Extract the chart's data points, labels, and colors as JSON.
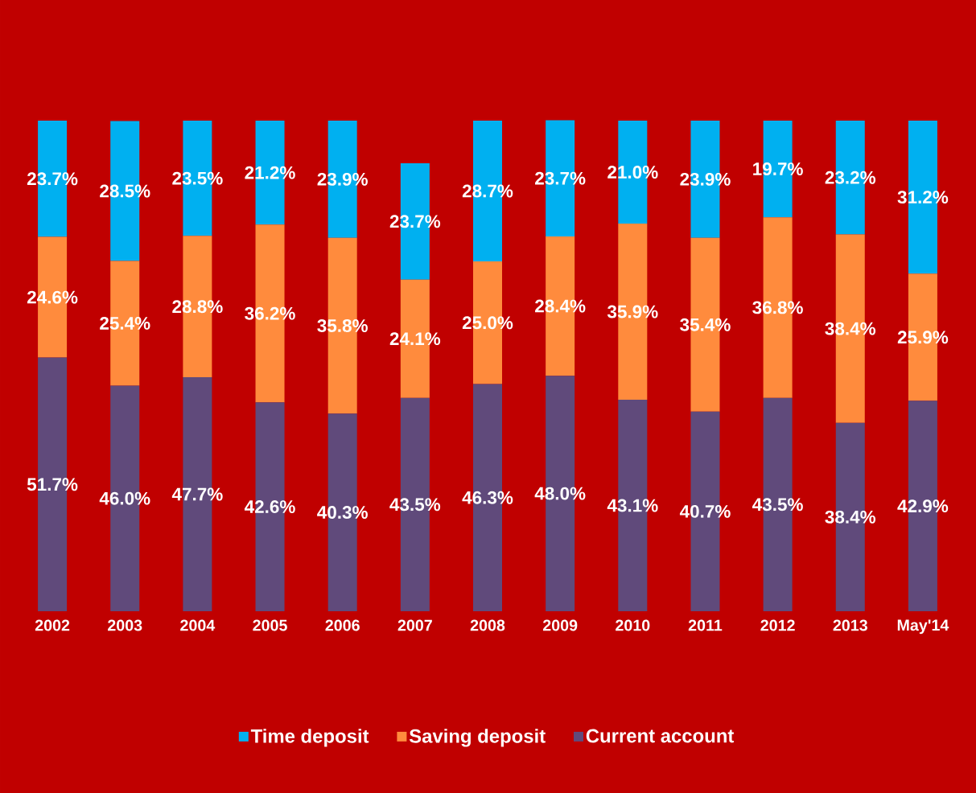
{
  "chart_data": {
    "type": "bar",
    "stacked": true,
    "categories": [
      "2002",
      "2003",
      "2004",
      "2005",
      "2006",
      "2007",
      "2008",
      "2009",
      "2010",
      "2011",
      "2012",
      "2013",
      "May'14"
    ],
    "series": [
      {
        "name": "Current account",
        "color": "#604a7b",
        "values": [
          51.7,
          46.0,
          47.7,
          42.6,
          40.3,
          43.5,
          46.3,
          48.0,
          43.1,
          40.7,
          43.5,
          38.4,
          42.9
        ],
        "value_labels": [
          "51.7%",
          "46.0%",
          "47.7%",
          "42.6%",
          "40.3%",
          "43.5%",
          "46.3%",
          "48.0%",
          "43.1%",
          "40.7%",
          "43.5%",
          "38.4%",
          "42.9%"
        ]
      },
      {
        "name": "Saving deposit",
        "color": "#ff8b3d",
        "values": [
          24.6,
          25.4,
          28.8,
          36.2,
          35.8,
          24.1,
          25.0,
          28.4,
          35.9,
          35.4,
          36.8,
          38.4,
          25.9
        ],
        "value_labels": [
          "24.6%",
          "25.4%",
          "28.8%",
          "36.2%",
          "35.8%",
          "24.1%",
          "25.0%",
          "28.4%",
          "35.9%",
          "35.4%",
          "36.8%",
          "38.4%",
          "25.9%"
        ]
      },
      {
        "name": "Time deposit",
        "color": "#00b0f0",
        "values": [
          23.7,
          28.5,
          23.5,
          21.2,
          23.9,
          23.7,
          28.7,
          23.7,
          21.0,
          23.9,
          19.7,
          23.2,
          31.2
        ],
        "value_labels": [
          "23.7%",
          "28.5%",
          "23.5%",
          "21.2%",
          "23.9%",
          "23.7%",
          "28.7%",
          "23.7%",
          "21.0%",
          "23.9%",
          "19.7%",
          "23.2%",
          "31.2%"
        ]
      }
    ],
    "ylim": [
      0,
      100
    ],
    "tick_labels": "x",
    "legend": "bottom"
  }
}
